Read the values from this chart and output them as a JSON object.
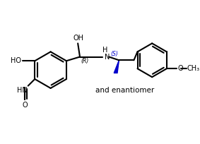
{
  "bg_color": "#ffffff",
  "bond_color": "#000000",
  "blue_color": "#0000cc",
  "line_width": 1.5,
  "fig_width": 2.83,
  "fig_height": 2.04,
  "dpi": 100,
  "and_enantiomer_text": "and enantiomer",
  "stereo_R": "(R)",
  "stereo_S": "(S)",
  "OH_top": "OH",
  "HO_left": "HO",
  "OCH3": "OCH₃"
}
